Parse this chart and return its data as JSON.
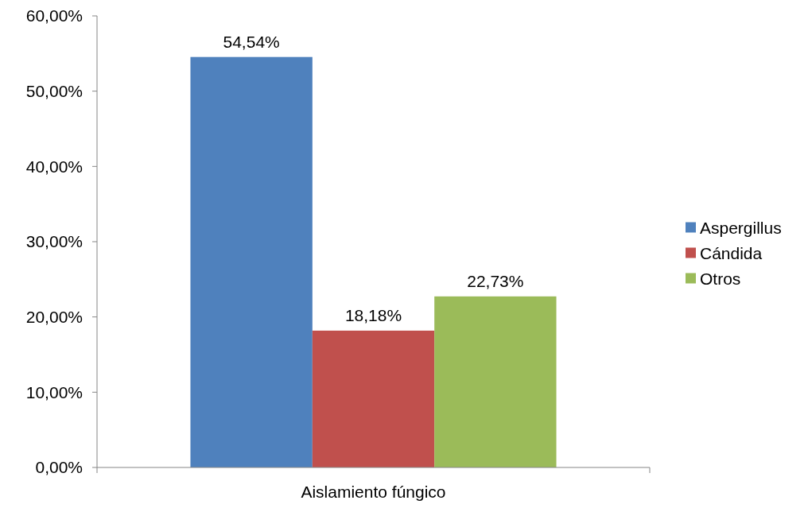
{
  "chart_data": {
    "type": "bar",
    "categories": [
      "Aislamiento fúngico"
    ],
    "series": [
      {
        "name": "Aspergillus",
        "color": "#4f81bd",
        "values": [
          54.54
        ],
        "value_labels": [
          "54,54%"
        ]
      },
      {
        "name": "Cándida",
        "color": "#c0504d",
        "values": [
          18.18
        ],
        "value_labels": [
          "18,18%"
        ]
      },
      {
        "name": "Otros",
        "color": "#9bbb59",
        "values": [
          22.73
        ],
        "value_labels": [
          "22,73%"
        ]
      }
    ],
    "ylim": [
      0,
      60
    ],
    "yticks": [
      {
        "value": 0,
        "label": "0,00%"
      },
      {
        "value": 10,
        "label": "10,00%"
      },
      {
        "value": 20,
        "label": "20,00%"
      },
      {
        "value": 30,
        "label": "30,00%"
      },
      {
        "value": 40,
        "label": "40,00%"
      },
      {
        "value": 50,
        "label": "50,00%"
      },
      {
        "value": 60,
        "label": "60,00%"
      }
    ],
    "legend": "right",
    "grid": false
  }
}
